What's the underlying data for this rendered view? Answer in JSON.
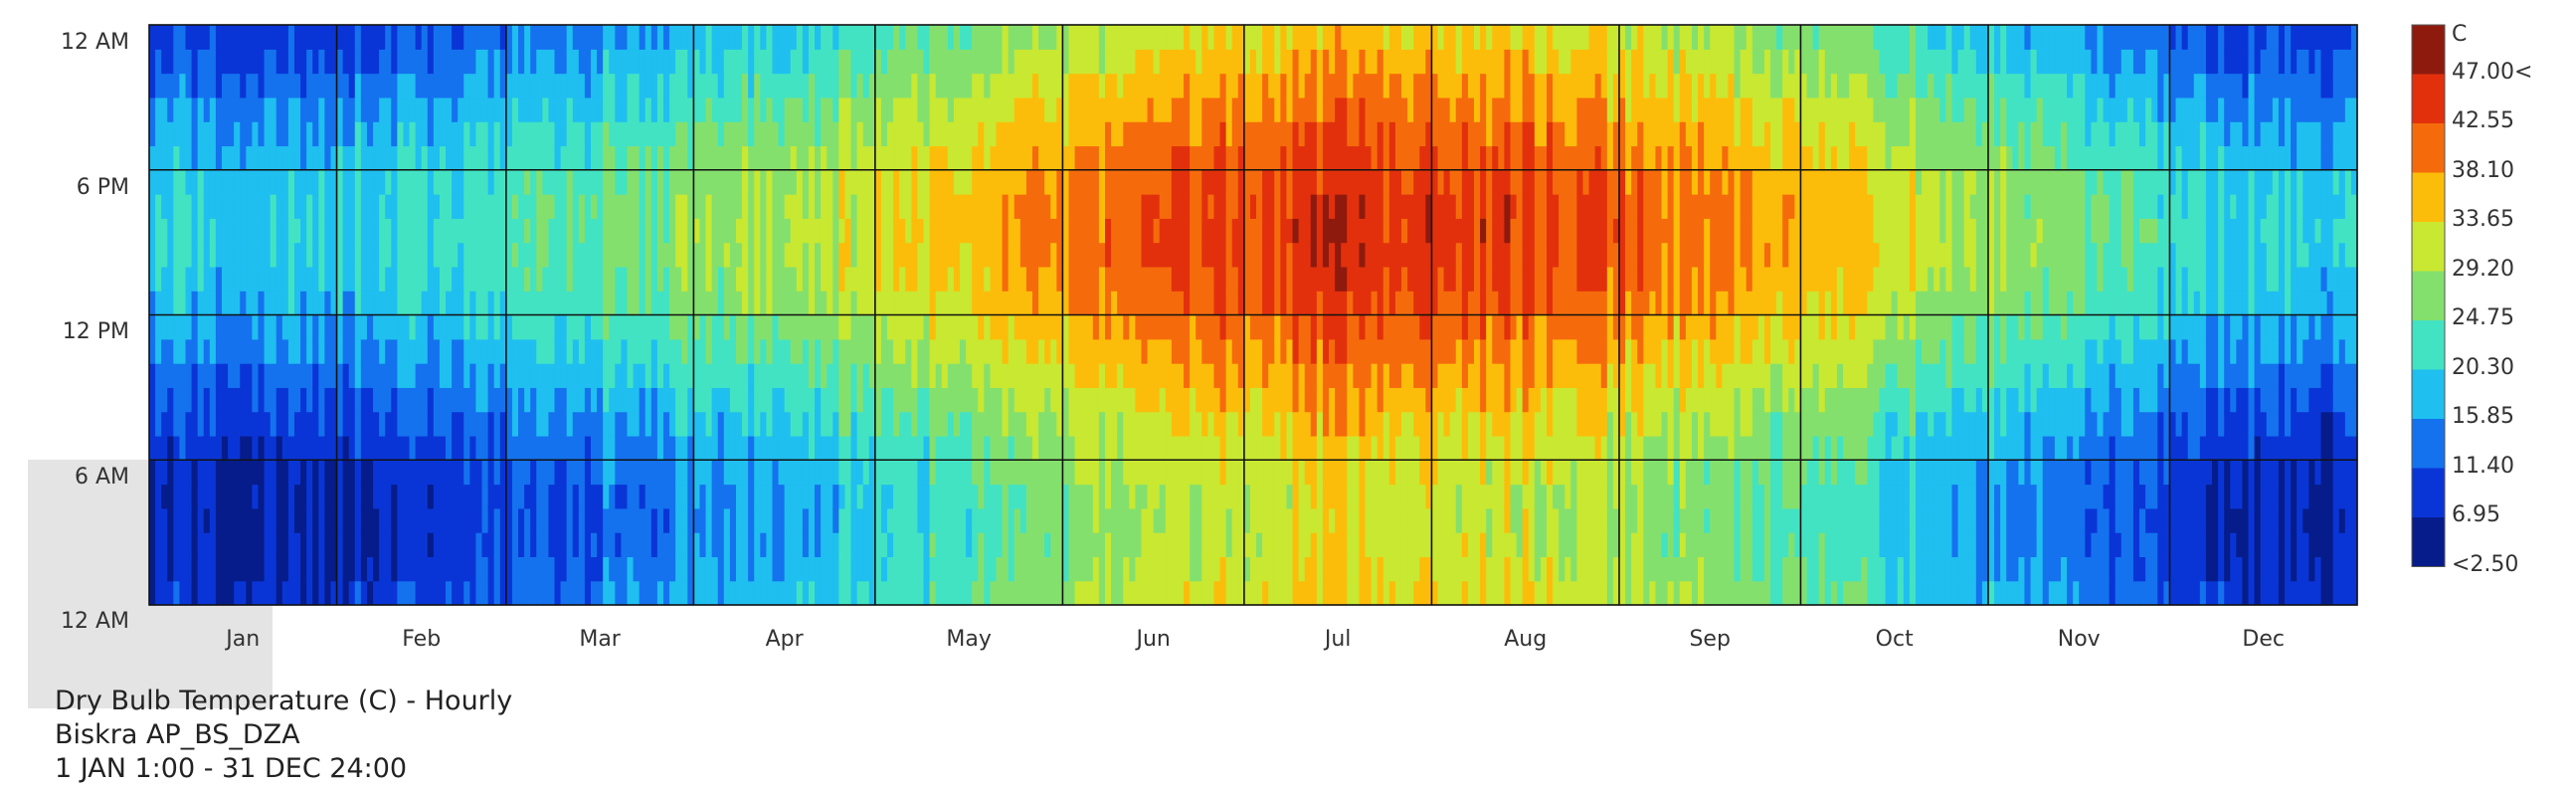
{
  "chart_data": {
    "type": "heatmap",
    "x_axis": {
      "categories": [
        "Jan",
        "Feb",
        "Mar",
        "Apr",
        "May",
        "Jun",
        "Jul",
        "Aug",
        "Sep",
        "Oct",
        "Nov",
        "Dec"
      ],
      "days_per_month": [
        31,
        28,
        31,
        30,
        31,
        30,
        31,
        31,
        30,
        31,
        30,
        31
      ]
    },
    "y_axis": {
      "tick_labels_top_to_bottom": [
        "12 AM",
        "6 PM",
        "12 PM",
        "6 AM",
        "12 AM"
      ],
      "range_hours": [
        0,
        24
      ]
    },
    "color_scale": {
      "unit": "C",
      "labels_top_to_bottom": [
        "47.00<",
        "42.55",
        "38.10",
        "33.65",
        "29.20",
        "24.75",
        "20.30",
        "15.85",
        "11.40",
        "6.95",
        "<2.50"
      ],
      "colors_top_to_bottom": [
        "#8e1a0e",
        "#e2300c",
        "#f56b0c",
        "#fcbd0a",
        "#c9e831",
        "#84e06d",
        "#42e3c2",
        "#1fbff0",
        "#1472ee",
        "#0a35d6",
        "#061c8a"
      ]
    },
    "approx_monthly_mean_temperature_C": [
      11.5,
      13.5,
      17.5,
      21.0,
      27.0,
      32.5,
      35.5,
      34.5,
      29.5,
      24.5,
      17.0,
      12.5
    ],
    "approx_daily_amplitude_C": 6.0
  },
  "caption": {
    "line1": "Dry Bulb Temperature (C) - Hourly",
    "line2": "Biskra AP_BS_DZA",
    "line3": "1 JAN 1:00 - 31 DEC 24:00"
  }
}
